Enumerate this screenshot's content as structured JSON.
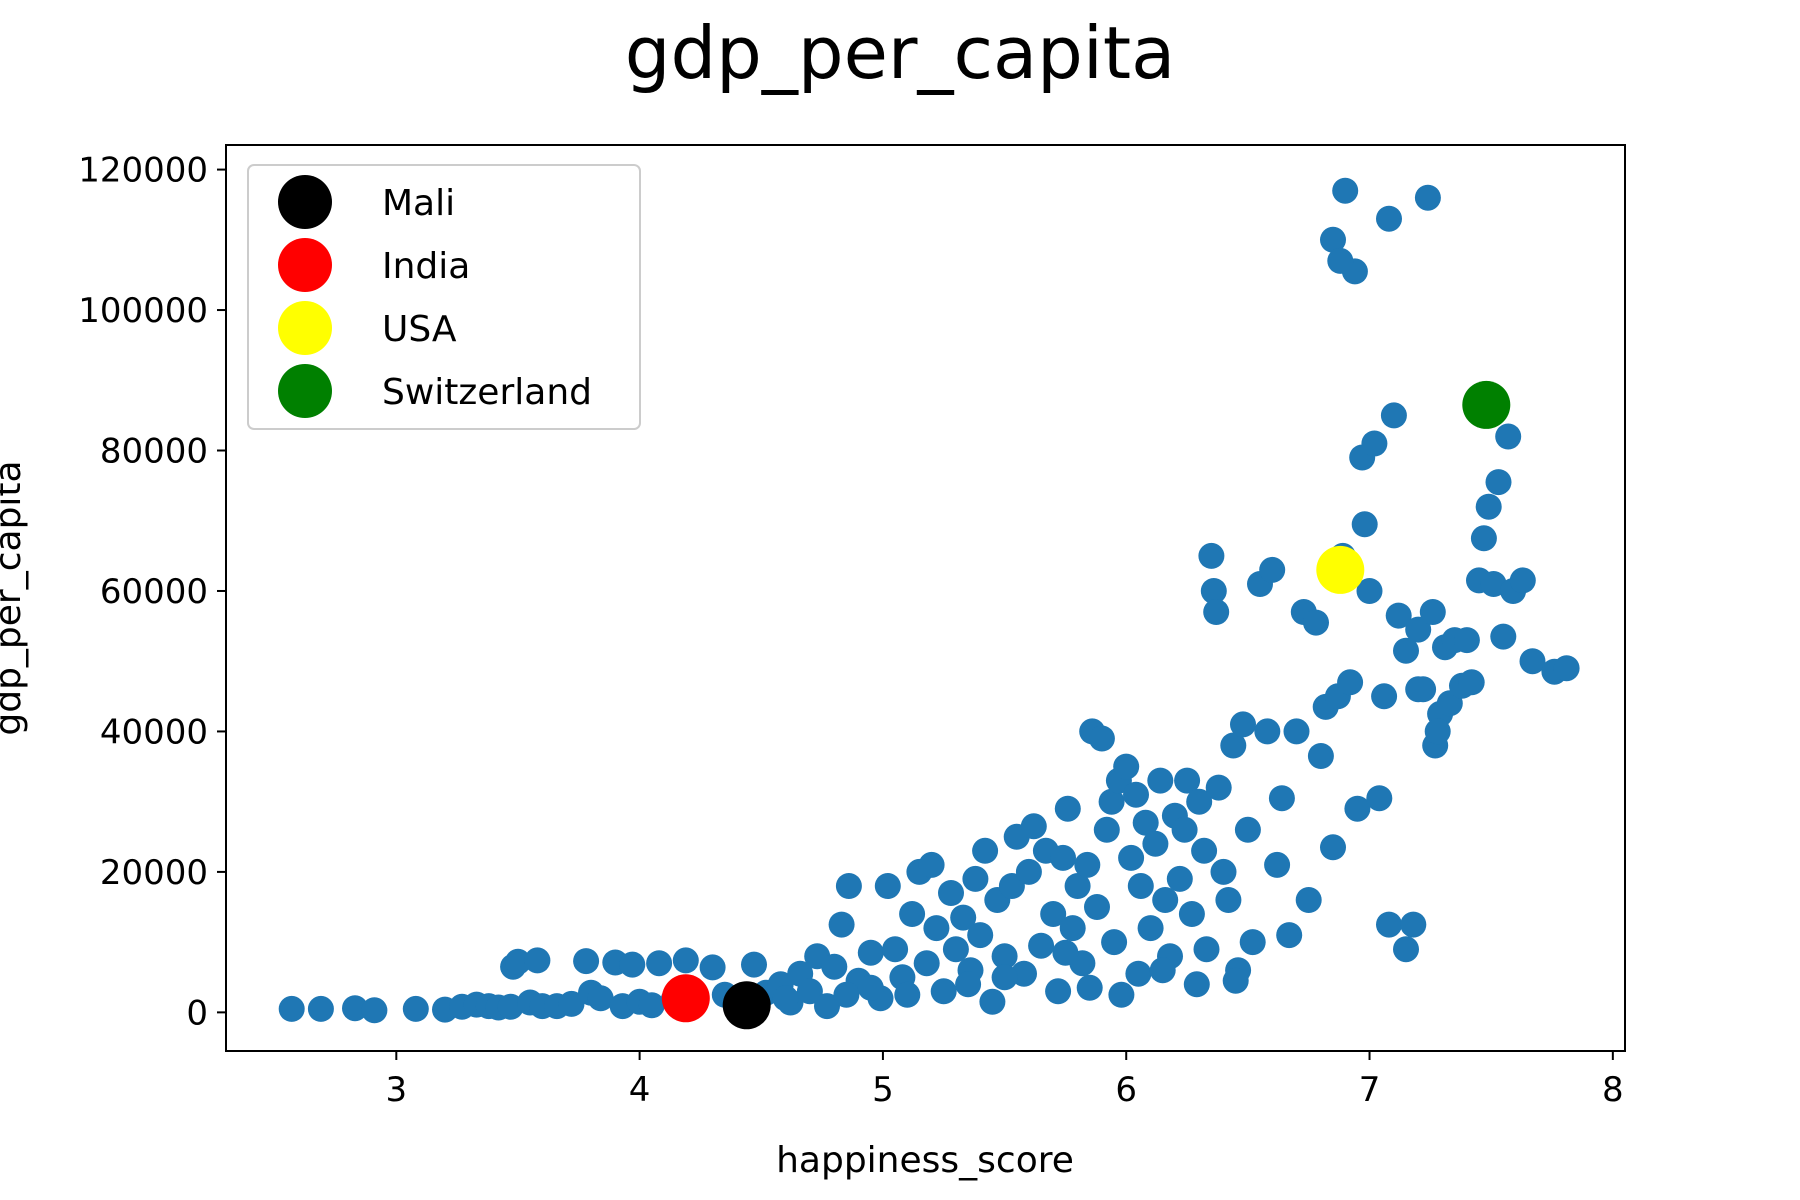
{
  "chart_data": {
    "type": "scatter",
    "title": "gdp_per_capita",
    "xlabel": "happiness_score",
    "ylabel": "gdp_per_capita",
    "xlim": [
      2.3,
      8.05
    ],
    "ylim": [
      -5500,
      123500
    ],
    "xticks": [
      3,
      4,
      5,
      6,
      7,
      8
    ],
    "yticks": [
      0,
      20000,
      40000,
      60000,
      80000,
      100000,
      120000
    ],
    "grid": false,
    "legend_position": "upper-left",
    "series": [
      {
        "color": "#1f77b4",
        "points": [
          [
            2.57,
            500
          ],
          [
            2.69,
            500
          ],
          [
            2.83,
            600
          ],
          [
            2.91,
            300
          ],
          [
            3.08,
            500
          ],
          [
            3.2,
            400
          ],
          [
            3.27,
            800
          ],
          [
            3.33,
            1100
          ],
          [
            3.38,
            900
          ],
          [
            3.42,
            700
          ],
          [
            3.47,
            800
          ],
          [
            3.48,
            6500
          ],
          [
            3.5,
            7200
          ],
          [
            3.55,
            1400
          ],
          [
            3.58,
            7400
          ],
          [
            3.6,
            900
          ],
          [
            3.66,
            900
          ],
          [
            3.72,
            1200
          ],
          [
            3.78,
            7300
          ],
          [
            3.8,
            2800
          ],
          [
            3.84,
            2000
          ],
          [
            3.9,
            7100
          ],
          [
            3.93,
            900
          ],
          [
            3.97,
            6800
          ],
          [
            4.0,
            1500
          ],
          [
            4.05,
            1000
          ],
          [
            4.08,
            7000
          ],
          [
            4.14,
            1800
          ],
          [
            4.19,
            7400
          ],
          [
            4.23,
            1500
          ],
          [
            4.3,
            6400
          ],
          [
            4.35,
            2500
          ],
          [
            4.4,
            1200
          ],
          [
            4.47,
            6800
          ],
          [
            4.52,
            2800
          ],
          [
            4.58,
            4000
          ],
          [
            4.62,
            1400
          ],
          [
            4.66,
            5500
          ],
          [
            4.7,
            3000
          ],
          [
            4.73,
            8000
          ],
          [
            4.77,
            900
          ],
          [
            4.8,
            6500
          ],
          [
            4.83,
            12500
          ],
          [
            4.86,
            18000
          ],
          [
            4.9,
            4500
          ],
          [
            4.95,
            8500
          ],
          [
            4.99,
            2000
          ],
          [
            5.02,
            18000
          ],
          [
            5.05,
            9000
          ],
          [
            5.08,
            5000
          ],
          [
            5.1,
            2500
          ],
          [
            5.12,
            14000
          ],
          [
            5.15,
            20000
          ],
          [
            5.18,
            7000
          ],
          [
            5.2,
            21000
          ],
          [
            5.22,
            12000
          ],
          [
            5.25,
            3000
          ],
          [
            5.28,
            17000
          ],
          [
            5.3,
            9000
          ],
          [
            5.33,
            13500
          ],
          [
            5.36,
            6000
          ],
          [
            5.38,
            19000
          ],
          [
            5.4,
            11000
          ],
          [
            5.42,
            23000
          ],
          [
            5.45,
            1500
          ],
          [
            5.47,
            16000
          ],
          [
            5.5,
            8000
          ],
          [
            5.53,
            18000
          ],
          [
            5.55,
            25000
          ],
          [
            5.58,
            5500
          ],
          [
            5.6,
            20000
          ],
          [
            5.62,
            26500
          ],
          [
            5.65,
            9500
          ],
          [
            5.67,
            23000
          ],
          [
            5.7,
            14000
          ],
          [
            5.72,
            3000
          ],
          [
            5.74,
            22000
          ],
          [
            5.76,
            29000
          ],
          [
            5.78,
            12000
          ],
          [
            5.8,
            18000
          ],
          [
            5.82,
            7000
          ],
          [
            5.84,
            21000
          ],
          [
            5.86,
            40000
          ],
          [
            5.88,
            15000
          ],
          [
            5.9,
            39000
          ],
          [
            5.92,
            26000
          ],
          [
            5.94,
            30000
          ],
          [
            5.95,
            10000
          ],
          [
            5.97,
            33000
          ],
          [
            5.98,
            2500
          ],
          [
            6.0,
            35000
          ],
          [
            6.02,
            22000
          ],
          [
            6.04,
            31000
          ],
          [
            6.06,
            18000
          ],
          [
            6.08,
            27000
          ],
          [
            6.1,
            12000
          ],
          [
            6.12,
            24000
          ],
          [
            6.14,
            33000
          ],
          [
            6.16,
            16000
          ],
          [
            6.18,
            8000
          ],
          [
            6.2,
            28000
          ],
          [
            6.22,
            19000
          ],
          [
            6.24,
            26000
          ],
          [
            6.25,
            33000
          ],
          [
            6.27,
            14000
          ],
          [
            6.29,
            4000
          ],
          [
            6.3,
            30000
          ],
          [
            6.32,
            23000
          ],
          [
            6.33,
            9000
          ],
          [
            6.35,
            65000
          ],
          [
            6.36,
            60000
          ],
          [
            6.37,
            57000
          ],
          [
            6.38,
            32000
          ],
          [
            6.4,
            20000
          ],
          [
            6.42,
            16000
          ],
          [
            6.44,
            38000
          ],
          [
            6.46,
            6000
          ],
          [
            6.48,
            41000
          ],
          [
            6.5,
            26000
          ],
          [
            6.52,
            10000
          ],
          [
            6.55,
            61000
          ],
          [
            6.58,
            40000
          ],
          [
            6.6,
            63000
          ],
          [
            6.62,
            21000
          ],
          [
            6.64,
            30500
          ],
          [
            6.67,
            11000
          ],
          [
            6.7,
            40000
          ],
          [
            6.73,
            57000
          ],
          [
            6.75,
            16000
          ],
          [
            6.78,
            55500
          ],
          [
            6.8,
            36500
          ],
          [
            6.82,
            43500
          ],
          [
            6.85,
            23500
          ],
          [
            6.87,
            45000
          ],
          [
            6.89,
            65000
          ],
          [
            6.9,
            117000
          ],
          [
            6.92,
            47000
          ],
          [
            6.94,
            105500
          ],
          [
            6.95,
            29000
          ],
          [
            6.97,
            79000
          ],
          [
            6.98,
            69500
          ],
          [
            7.0,
            60000
          ],
          [
            7.02,
            81000
          ],
          [
            7.04,
            30500
          ],
          [
            7.06,
            45000
          ],
          [
            7.08,
            12500
          ],
          [
            7.1,
            85000
          ],
          [
            7.12,
            56500
          ],
          [
            7.15,
            51500
          ],
          [
            7.18,
            12500
          ],
          [
            7.2,
            54500
          ],
          [
            7.22,
            46000
          ],
          [
            7.24,
            116000
          ],
          [
            7.26,
            57000
          ],
          [
            7.27,
            38000
          ],
          [
            7.29,
            42500
          ],
          [
            7.31,
            52000
          ],
          [
            7.33,
            44000
          ],
          [
            7.35,
            53000
          ],
          [
            7.38,
            46500
          ],
          [
            7.4,
            53000
          ],
          [
            7.42,
            47000
          ],
          [
            7.45,
            61500
          ],
          [
            7.47,
            67500
          ],
          [
            7.49,
            72000
          ],
          [
            7.51,
            61000
          ],
          [
            7.53,
            75500
          ],
          [
            7.55,
            53500
          ],
          [
            7.57,
            82000
          ],
          [
            7.59,
            60000
          ],
          [
            7.63,
            61500
          ],
          [
            7.67,
            50000
          ],
          [
            7.76,
            48500
          ],
          [
            7.81,
            49000
          ],
          [
            6.85,
            110000
          ],
          [
            6.88,
            107000
          ],
          [
            7.08,
            113000
          ],
          [
            7.2,
            46000
          ],
          [
            7.28,
            40000
          ],
          [
            7.15,
            9000
          ],
          [
            5.5,
            5000
          ],
          [
            5.85,
            3500
          ],
          [
            6.05,
            5500
          ],
          [
            6.45,
            4500
          ],
          [
            4.95,
            3500
          ],
          [
            5.35,
            4000
          ],
          [
            4.6,
            2000
          ],
          [
            4.85,
            2500
          ],
          [
            6.15,
            6000
          ],
          [
            5.75,
            8500
          ]
        ]
      }
    ],
    "highlights": [
      {
        "label": "Mali",
        "color": "#000000",
        "x": 4.44,
        "y": 1000
      },
      {
        "label": "India",
        "color": "#ff0000",
        "x": 4.19,
        "y": 2000
      },
      {
        "label": "USA",
        "color": "#ffff00",
        "x": 6.88,
        "y": 63000
      },
      {
        "label": "Switzerland",
        "color": "#008000",
        "x": 7.48,
        "y": 86500
      }
    ]
  }
}
